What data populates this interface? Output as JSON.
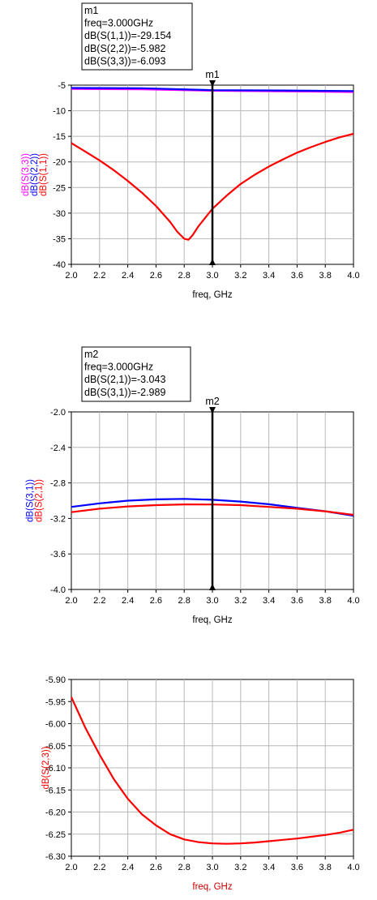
{
  "chart_data": [
    {
      "type": "line",
      "xlabel": "freq, GHz",
      "xlim": [
        2.0,
        4.0
      ],
      "xticks": [
        "2.0",
        "2.2",
        "2.4",
        "2.6",
        "2.8",
        "3.0",
        "3.2",
        "3.4",
        "3.6",
        "3.8",
        "4.0"
      ],
      "ylim": [
        -40,
        -5
      ],
      "yticks": [
        "-5",
        "-10",
        "-15",
        "-20",
        "-25",
        "-30",
        "-35",
        "-40"
      ],
      "grid": true,
      "ylabels": [
        {
          "text": "dB(S(3,3))",
          "color": "#ff00ff"
        },
        {
          "text": "dB(S(2,2))",
          "color": "#0000ff"
        },
        {
          "text": "dB(S(1,1))",
          "color": "#ff0000"
        }
      ],
      "marker": {
        "name": "m1",
        "x": 3.0,
        "lines": [
          "m1",
          "freq=3.000GHz",
          "dB(S(1,1))=-29.154",
          "dB(S(2,2))=-5.982",
          "dB(S(3,3))=-6.093"
        ]
      },
      "series": [
        {
          "name": "dB(S(3,3))",
          "color": "#ff00ff",
          "x": [
            2.0,
            2.5,
            3.0,
            3.5,
            4.0
          ],
          "y": [
            -5.75,
            -5.8,
            -6.09,
            -6.2,
            -6.35
          ]
        },
        {
          "name": "dB(S(2,2))",
          "color": "#0000ff",
          "x": [
            2.0,
            2.5,
            3.0,
            3.5,
            4.0
          ],
          "y": [
            -5.55,
            -5.6,
            -5.98,
            -6.05,
            -6.15
          ]
        },
        {
          "name": "dB(S(1,1))",
          "color": "#ff0000",
          "x": [
            2.0,
            2.1,
            2.2,
            2.3,
            2.4,
            2.5,
            2.6,
            2.7,
            2.75,
            2.8,
            2.83,
            2.86,
            2.9,
            3.0,
            3.1,
            3.2,
            3.3,
            3.4,
            3.5,
            3.6,
            3.7,
            3.8,
            3.9,
            4.0
          ],
          "y": [
            -16.3,
            -18.0,
            -19.7,
            -21.6,
            -23.7,
            -26.0,
            -28.6,
            -31.7,
            -33.6,
            -35.0,
            -35.2,
            -34.3,
            -32.6,
            -29.15,
            -26.6,
            -24.3,
            -22.5,
            -20.9,
            -19.5,
            -18.2,
            -17.1,
            -16.1,
            -15.2,
            -14.5
          ]
        }
      ]
    },
    {
      "type": "line",
      "xlabel": "freq, GHz",
      "xlim": [
        2.0,
        4.0
      ],
      "xticks": [
        "2.0",
        "2.2",
        "2.4",
        "2.6",
        "2.8",
        "3.0",
        "3.2",
        "3.4",
        "3.6",
        "3.8",
        "4.0"
      ],
      "ylim": [
        -4.0,
        -2.0
      ],
      "yticks": [
        "-2.0",
        "-2.4",
        "-2.8",
        "-3.2",
        "-3.6",
        "-4.0"
      ],
      "grid": true,
      "ylabels": [
        {
          "text": "dB(S(3,1))",
          "color": "#0000ff"
        },
        {
          "text": "dB(S(2,1))",
          "color": "#ff0000"
        }
      ],
      "marker": {
        "name": "m2",
        "x": 3.0,
        "lines": [
          "m2",
          "freq=3.000GHz",
          "dB(S(2,1))=-3.043",
          "dB(S(3,1))=-2.989"
        ]
      },
      "series": [
        {
          "name": "dB(S(3,1))",
          "color": "#0000ff",
          "x": [
            2.0,
            2.2,
            2.4,
            2.6,
            2.8,
            3.0,
            3.2,
            3.4,
            3.6,
            3.8,
            4.0
          ],
          "y": [
            -3.07,
            -3.03,
            -3.0,
            -2.985,
            -2.98,
            -2.99,
            -3.01,
            -3.04,
            -3.08,
            -3.12,
            -3.17
          ]
        },
        {
          "name": "dB(S(2,1))",
          "color": "#ff0000",
          "x": [
            2.0,
            2.2,
            2.4,
            2.6,
            2.8,
            3.0,
            3.2,
            3.4,
            3.6,
            3.8,
            4.0
          ],
          "y": [
            -3.13,
            -3.09,
            -3.065,
            -3.05,
            -3.042,
            -3.043,
            -3.05,
            -3.07,
            -3.09,
            -3.12,
            -3.16
          ]
        }
      ]
    },
    {
      "type": "line",
      "xlabel": "freq, GHz",
      "xlabel_color": "#cc0000",
      "xlim": [
        2.0,
        4.0
      ],
      "xticks": [
        "2.0",
        "2.2",
        "2.4",
        "2.6",
        "2.8",
        "3.0",
        "3.2",
        "3.4",
        "3.6",
        "3.8",
        "4.0"
      ],
      "ylim": [
        -6.3,
        -5.9
      ],
      "yticks": [
        "-5.90",
        "-5.95",
        "-6.00",
        "-6.05",
        "-6.10",
        "-6.15",
        "-6.20",
        "-6.25",
        "-6.30"
      ],
      "grid": true,
      "ylabels": [
        {
          "text": "dB(S(2,3))",
          "color": "#ff0000"
        }
      ],
      "series": [
        {
          "name": "dB(S(2,3))",
          "color": "#ff0000",
          "x": [
            2.0,
            2.1,
            2.2,
            2.3,
            2.4,
            2.5,
            2.6,
            2.7,
            2.8,
            2.9,
            3.0,
            3.1,
            3.2,
            3.3,
            3.4,
            3.5,
            3.6,
            3.7,
            3.8,
            3.9,
            4.0
          ],
          "y": [
            -5.94,
            -6.01,
            -6.07,
            -6.125,
            -6.17,
            -6.205,
            -6.23,
            -6.25,
            -6.262,
            -6.268,
            -6.271,
            -6.272,
            -6.271,
            -6.269,
            -6.266,
            -6.263,
            -6.26,
            -6.256,
            -6.252,
            -6.247,
            -6.24
          ]
        }
      ]
    }
  ]
}
